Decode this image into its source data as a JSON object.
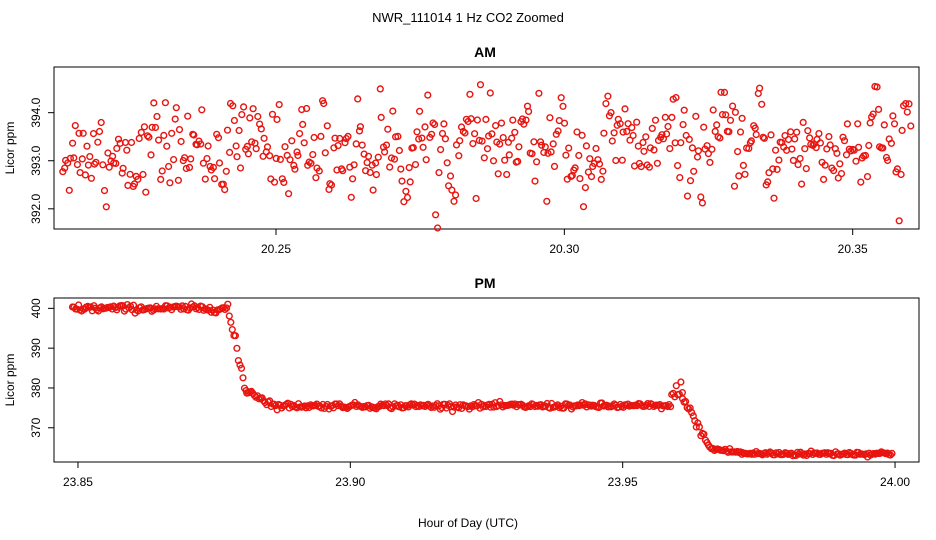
{
  "chart_data": {
    "title": "NWR_111014  1 Hz CO2 Zoomed",
    "xlabel": "Hour of Day (UTC)",
    "type": "scatter",
    "marker_color": "#e8140f",
    "panels": [
      {
        "id": "am",
        "title": "AM",
        "ylabel": "Licor ppm",
        "xlim": [
          20.2115,
          20.3615
        ],
        "ylim": [
          391.58,
          394.95
        ],
        "xticks": [
          20.25,
          20.3,
          20.35
        ],
        "xtick_labels": [
          "20.25",
          "20.30",
          "20.35"
        ],
        "yticks": [
          392.0,
          393.0,
          394.0
        ],
        "ytick_labels": [
          "392.0",
          "393.0",
          "394.0"
        ],
        "x_start": 20.213,
        "x_end": 20.36,
        "n_points": 530,
        "mean": 393.25,
        "spread": 0.46,
        "min": 391.6,
        "max": 394.8
      },
      {
        "id": "pm",
        "title": "PM",
        "ylabel": "Licor ppm",
        "xlim": [
          23.8456,
          24.0044
        ],
        "ylim": [
          361.4,
          402.6
        ],
        "xticks": [
          23.85,
          23.9,
          23.95,
          24.0
        ],
        "xtick_labels": [
          "23.85",
          "23.90",
          "23.95",
          "24.00"
        ],
        "yticks": [
          370,
          380,
          390,
          400
        ],
        "ytick_labels": [
          "370",
          "380",
          "390",
          "400"
        ],
        "segments": [
          {
            "from": 23.849,
            "to": 23.8775,
            "level": 400.0,
            "noise": 0.45
          },
          {
            "from": 23.8775,
            "to": 23.881,
            "level_start": 400.0,
            "level_end": 378.0,
            "noise": 0.8
          },
          {
            "from": 23.881,
            "to": 23.886,
            "level_start": 379.5,
            "level_end": 375.6,
            "noise": 0.5
          },
          {
            "from": 23.886,
            "to": 23.959,
            "level": 375.5,
            "noise": 0.35
          },
          {
            "from": 23.959,
            "to": 23.961,
            "level_start": 377.0,
            "level_end": 381.0,
            "noise": 1.0
          },
          {
            "from": 23.961,
            "to": 23.966,
            "level_start": 377.5,
            "level_end": 365.0,
            "noise": 0.6
          },
          {
            "from": 23.966,
            "to": 23.972,
            "level_start": 364.8,
            "level_end": 363.7,
            "noise": 0.35
          },
          {
            "from": 23.972,
            "to": 23.9995,
            "level": 363.5,
            "noise": 0.3
          }
        ]
      }
    ]
  }
}
